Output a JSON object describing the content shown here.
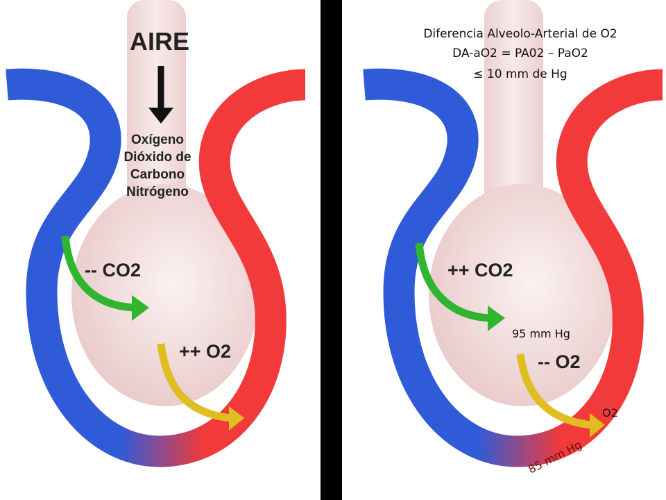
{
  "left": {
    "aire": "AIRE",
    "gases": [
      "Oxígeno",
      "Dióxido de",
      "Carbono",
      "Nitrógeno"
    ],
    "co2": "-- CO2",
    "o2": "++ O2"
  },
  "right": {
    "title": [
      "Diferencia Alveolo-Arterial de O2",
      "DA-aO2 = PA02 – PaO2",
      "≤ 10 mm de Hg"
    ],
    "co2": "++ CO2",
    "alveolar_pressure": "95 mm Hg",
    "o2": "-- O2",
    "o2_label": "O2",
    "arterial_pressure": "85 mm Hg"
  }
}
